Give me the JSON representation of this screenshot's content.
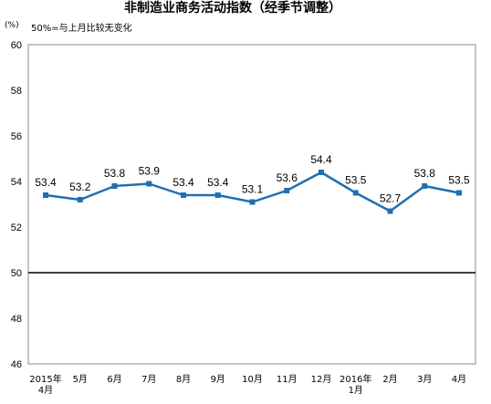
{
  "chart_data": {
    "type": "line",
    "title": "非制造业商务活动指数（经季节调整）",
    "unit": "(%)",
    "note": "50%=与上月比较无变化",
    "categories": [
      [
        "2015年",
        "4月"
      ],
      [
        "5月"
      ],
      [
        "6月"
      ],
      [
        "7月"
      ],
      [
        "8月"
      ],
      [
        "9月"
      ],
      [
        "10月"
      ],
      [
        "11月"
      ],
      [
        "12月"
      ],
      [
        "2016年",
        "1月"
      ],
      [
        "2月"
      ],
      [
        "3月"
      ],
      [
        "4月"
      ]
    ],
    "values": [
      53.4,
      53.2,
      53.8,
      53.9,
      53.4,
      53.4,
      53.1,
      53.6,
      54.4,
      53.5,
      52.7,
      53.8,
      53.5
    ],
    "value_labels": [
      "53.4",
      "53.2",
      "53.8",
      "53.9",
      "53.4",
      "53.4",
      "53.1",
      "53.6",
      "54.4",
      "53.5",
      "52.7",
      "53.8",
      "53.5"
    ],
    "ylim": [
      46,
      60
    ],
    "yticks": [
      46,
      48,
      50,
      52,
      54,
      56,
      58,
      60
    ],
    "reference_line": 50,
    "grid": false,
    "line_color": "#1F6FB2",
    "colors": {
      "reference_line": "#000000",
      "axis": "#888888"
    }
  }
}
